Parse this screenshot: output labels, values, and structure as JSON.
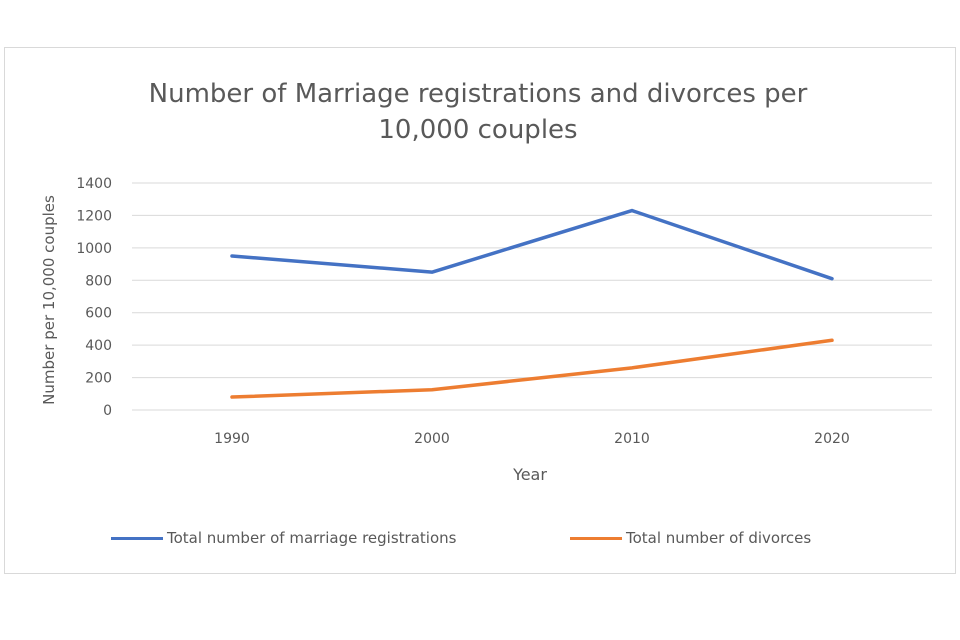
{
  "chart_data": {
    "type": "line",
    "title_lines": [
      "Number of Marriage registrations and divorces per",
      "10,000 couples"
    ],
    "xlabel": "Year",
    "ylabel": "Number per 10,000 couples",
    "categories": [
      "1990",
      "2000",
      "2010",
      "2020"
    ],
    "yticks": [
      "0",
      "200",
      "400",
      "600",
      "800",
      "1000",
      "1200",
      "1400"
    ],
    "ylim": [
      0,
      1400
    ],
    "grid": true,
    "legend_position": "bottom",
    "series": [
      {
        "name": "Total number of marriage registrations",
        "color": "#4472c4",
        "values": [
          950,
          850,
          1230,
          810
        ]
      },
      {
        "name": "Total number of divorces",
        "color": "#ed7d31",
        "values": [
          80,
          125,
          260,
          430
        ]
      }
    ]
  }
}
